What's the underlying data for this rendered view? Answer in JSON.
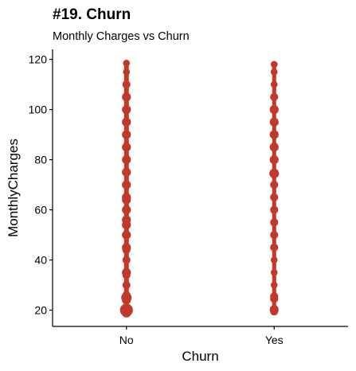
{
  "chart_data": {
    "type": "scatter",
    "title": "#19. Churn",
    "subtitle": "Monthly Charges vs Churn",
    "xlabel": "Churn",
    "ylabel": "MonthlyCharges",
    "categories": [
      "No",
      "Yes"
    ],
    "ylim": [
      13.5,
      124
    ],
    "yticks": [
      20,
      40,
      60,
      80,
      100,
      120
    ],
    "grid": false,
    "legend": "none",
    "point_color": "#c0392b",
    "series": [
      {
        "category": "No",
        "points": [
          {
            "y": 19.0,
            "weight": 4
          },
          {
            "y": 20.0,
            "weight": 10
          },
          {
            "y": 20.5,
            "weight": 6
          },
          {
            "y": 24.0,
            "weight": 3
          },
          {
            "y": 25.0,
            "weight": 5
          },
          {
            "y": 26.0,
            "weight": 2
          },
          {
            "y": 30.0,
            "weight": 2
          },
          {
            "y": 34.0,
            "weight": 2
          },
          {
            "y": 35.0,
            "weight": 3
          },
          {
            "y": 40.0,
            "weight": 2
          },
          {
            "y": 44.0,
            "weight": 2
          },
          {
            "y": 45.0,
            "weight": 3
          },
          {
            "y": 50.0,
            "weight": 3
          },
          {
            "y": 54.0,
            "weight": 3
          },
          {
            "y": 56.0,
            "weight": 3
          },
          {
            "y": 60.0,
            "weight": 3
          },
          {
            "y": 64.0,
            "weight": 3
          },
          {
            "y": 65.0,
            "weight": 3
          },
          {
            "y": 70.0,
            "weight": 3
          },
          {
            "y": 75.0,
            "weight": 3
          },
          {
            "y": 80.0,
            "weight": 3
          },
          {
            "y": 85.0,
            "weight": 3
          },
          {
            "y": 90.0,
            "weight": 3
          },
          {
            "y": 95.0,
            "weight": 3
          },
          {
            "y": 100.0,
            "weight": 3
          },
          {
            "y": 105.0,
            "weight": 3
          },
          {
            "y": 110.0,
            "weight": 2
          },
          {
            "y": 115.0,
            "weight": 1
          },
          {
            "y": 118.5,
            "weight": 1
          }
        ]
      },
      {
        "category": "Yes",
        "points": [
          {
            "y": 19.5,
            "weight": 2
          },
          {
            "y": 20.2,
            "weight": 3
          },
          {
            "y": 24.5,
            "weight": 2
          },
          {
            "y": 25.5,
            "weight": 2
          },
          {
            "y": 30.0,
            "weight": 1
          },
          {
            "y": 35.0,
            "weight": 1
          },
          {
            "y": 40.0,
            "weight": 1
          },
          {
            "y": 45.0,
            "weight": 2
          },
          {
            "y": 50.0,
            "weight": 2
          },
          {
            "y": 55.0,
            "weight": 2
          },
          {
            "y": 60.0,
            "weight": 2
          },
          {
            "y": 65.0,
            "weight": 2
          },
          {
            "y": 70.0,
            "weight": 2
          },
          {
            "y": 74.5,
            "weight": 4
          },
          {
            "y": 80.0,
            "weight": 3
          },
          {
            "y": 85.0,
            "weight": 3
          },
          {
            "y": 90.0,
            "weight": 3
          },
          {
            "y": 95.0,
            "weight": 3
          },
          {
            "y": 100.0,
            "weight": 3
          },
          {
            "y": 105.0,
            "weight": 2
          },
          {
            "y": 110.0,
            "weight": 1
          },
          {
            "y": 115.0,
            "weight": 1
          },
          {
            "y": 118.0,
            "weight": 1
          }
        ]
      }
    ]
  }
}
